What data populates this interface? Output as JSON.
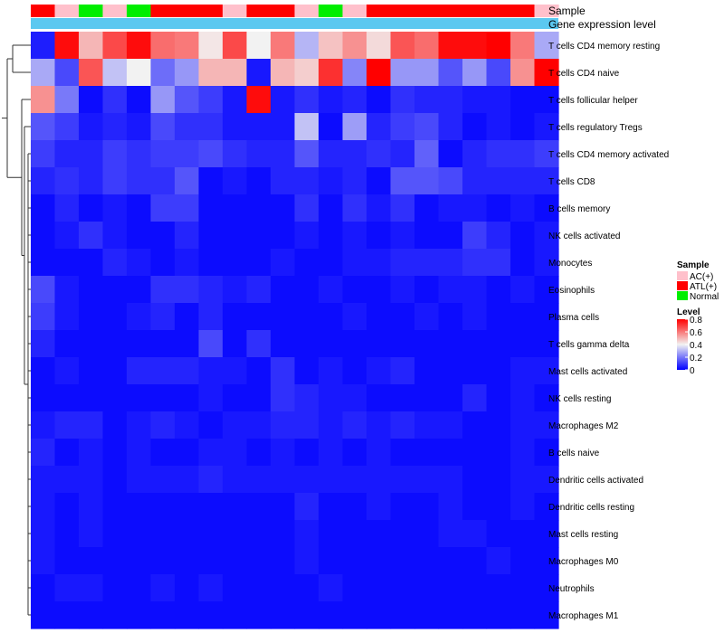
{
  "chart_data": {
    "type": "heatmap",
    "title": "",
    "row_labels": [
      "T cells CD4 memory resting",
      "T cells CD4 naive",
      "T cells follicular helper",
      "T cells regulatory  Tregs",
      "T cells CD4 memory activated",
      "T cells CD8",
      "B cells memory",
      "NK cells activated",
      "Monocytes",
      "Eosinophils",
      "Plasma cells",
      "T cells gamma delta",
      "Mast cells activated",
      "NK cells resting",
      "Macrophages M2",
      "B cells naive",
      "Dendritic cells activated",
      "Dendritic cells resting",
      "Mast cells resting",
      "Macrophages M0",
      "Neutrophils",
      "Macrophages M1"
    ],
    "annotations": [
      {
        "name": "Sample",
        "values": [
          "ATL(+)",
          "AC(+)",
          "Normal",
          "AC(+)",
          "Normal",
          "ATL(+)",
          "ATL(+)",
          "ATL(+)",
          "AC(+)",
          "ATL(+)",
          "ATL(+)",
          "AC(+)",
          "Normal",
          "AC(+)",
          "ATL(+)",
          "ATL(+)",
          "ATL(+)",
          "ATL(+)",
          "ATL(+)",
          "ATL(+)",
          "ATL(+)",
          "AC(+)"
        ]
      },
      {
        "name": "Gene expression level",
        "color": "#5bc8f0"
      }
    ],
    "sample_legend": {
      "title": "Sample",
      "entries": [
        {
          "label": "AC(+)",
          "color": "#ffc0cb"
        },
        {
          "label": "ATL(+)",
          "color": "#ff0000"
        },
        {
          "label": "Normal",
          "color": "#00ee00"
        }
      ]
    },
    "color_scale": {
      "title": "Level",
      "min": 0,
      "max": 0.8,
      "low_color": "#0000ff",
      "mid_color": "#f2f2f2",
      "high_color": "#ff0000",
      "ticks": [
        0,
        0.2,
        0.4,
        0.6,
        0.8
      ],
      "tick_labels": [
        "0",
        "0.2",
        "0.4",
        "0.6",
        "0.8"
      ]
    },
    "values": [
      [
        0.05,
        0.78,
        0.5,
        0.68,
        0.78,
        0.62,
        0.6,
        0.42,
        0.68,
        0.4,
        0.6,
        0.3,
        0.48,
        0.56,
        0.44,
        0.66,
        0.62,
        0.78,
        0.78,
        0.8,
        0.6,
        0.28
      ],
      [
        0.28,
        0.12,
        0.66,
        0.32,
        0.4,
        0.18,
        0.25,
        0.5,
        0.5,
        0.04,
        0.5,
        0.46,
        0.72,
        0.22,
        0.8,
        0.25,
        0.25,
        0.14,
        0.25,
        0.12,
        0.56,
        0.8
      ],
      [
        0.56,
        0.2,
        0.02,
        0.08,
        0.02,
        0.25,
        0.14,
        0.1,
        0.04,
        0.78,
        0.04,
        0.08,
        0.04,
        0.06,
        0.02,
        0.08,
        0.06,
        0.06,
        0.04,
        0.04,
        0.02,
        0.02
      ],
      [
        0.14,
        0.1,
        0.04,
        0.06,
        0.04,
        0.12,
        0.08,
        0.08,
        0.04,
        0.04,
        0.04,
        0.32,
        0.02,
        0.26,
        0.06,
        0.1,
        0.12,
        0.06,
        0.02,
        0.04,
        0.02,
        0.04
      ],
      [
        0.1,
        0.06,
        0.06,
        0.1,
        0.08,
        0.1,
        0.1,
        0.12,
        0.08,
        0.06,
        0.06,
        0.14,
        0.06,
        0.06,
        0.08,
        0.06,
        0.16,
        0.02,
        0.06,
        0.08,
        0.08,
        0.1
      ],
      [
        0.06,
        0.08,
        0.06,
        0.1,
        0.08,
        0.08,
        0.14,
        0.02,
        0.04,
        0.02,
        0.06,
        0.06,
        0.04,
        0.06,
        0.02,
        0.14,
        0.14,
        0.12,
        0.06,
        0.06,
        0.06,
        0.06
      ],
      [
        0.02,
        0.06,
        0.02,
        0.04,
        0.02,
        0.1,
        0.1,
        0.02,
        0.02,
        0.02,
        0.02,
        0.08,
        0.02,
        0.08,
        0.04,
        0.08,
        0.02,
        0.04,
        0.04,
        0.02,
        0.04,
        0.02
      ],
      [
        0.02,
        0.04,
        0.08,
        0.04,
        0.02,
        0.02,
        0.06,
        0.02,
        0.02,
        0.02,
        0.02,
        0.04,
        0.02,
        0.04,
        0.02,
        0.04,
        0.02,
        0.02,
        0.1,
        0.06,
        0.02,
        0.04
      ],
      [
        0.02,
        0.02,
        0.02,
        0.06,
        0.04,
        0.02,
        0.04,
        0.02,
        0.02,
        0.02,
        0.04,
        0.02,
        0.02,
        0.04,
        0.04,
        0.06,
        0.06,
        0.06,
        0.08,
        0.08,
        0.02,
        0.04
      ],
      [
        0.12,
        0.04,
        0.02,
        0.02,
        0.02,
        0.08,
        0.08,
        0.06,
        0.04,
        0.06,
        0.02,
        0.02,
        0.04,
        0.02,
        0.02,
        0.04,
        0.02,
        0.04,
        0.04,
        0.02,
        0.04,
        0.02
      ],
      [
        0.1,
        0.04,
        0.02,
        0.02,
        0.04,
        0.06,
        0.02,
        0.06,
        0.02,
        0.02,
        0.02,
        0.02,
        0.02,
        0.04,
        0.02,
        0.02,
        0.04,
        0.02,
        0.04,
        0.02,
        0.02,
        0.02
      ],
      [
        0.06,
        0.02,
        0.02,
        0.02,
        0.02,
        0.02,
        0.02,
        0.12,
        0.02,
        0.08,
        0.02,
        0.02,
        0.02,
        0.02,
        0.02,
        0.02,
        0.02,
        0.02,
        0.02,
        0.02,
        0.02,
        0.02
      ],
      [
        0.02,
        0.04,
        0.02,
        0.02,
        0.06,
        0.06,
        0.06,
        0.04,
        0.04,
        0.02,
        0.08,
        0.02,
        0.04,
        0.02,
        0.04,
        0.06,
        0.02,
        0.02,
        0.02,
        0.02,
        0.04,
        0.04
      ],
      [
        0.02,
        0.02,
        0.02,
        0.02,
        0.02,
        0.02,
        0.02,
        0.04,
        0.02,
        0.02,
        0.08,
        0.06,
        0.04,
        0.04,
        0.02,
        0.02,
        0.02,
        0.02,
        0.06,
        0.02,
        0.04,
        0.02
      ],
      [
        0.04,
        0.06,
        0.06,
        0.02,
        0.04,
        0.06,
        0.04,
        0.02,
        0.04,
        0.04,
        0.06,
        0.06,
        0.04,
        0.06,
        0.04,
        0.06,
        0.04,
        0.04,
        0.02,
        0.02,
        0.04,
        0.04
      ],
      [
        0.06,
        0.02,
        0.04,
        0.02,
        0.04,
        0.02,
        0.02,
        0.04,
        0.04,
        0.02,
        0.04,
        0.02,
        0.04,
        0.02,
        0.04,
        0.02,
        0.02,
        0.02,
        0.02,
        0.02,
        0.04,
        0.02
      ],
      [
        0.04,
        0.04,
        0.04,
        0.02,
        0.04,
        0.04,
        0.04,
        0.06,
        0.04,
        0.04,
        0.04,
        0.04,
        0.04,
        0.04,
        0.04,
        0.04,
        0.04,
        0.04,
        0.02,
        0.02,
        0.04,
        0.04
      ],
      [
        0.04,
        0.02,
        0.04,
        0.02,
        0.02,
        0.02,
        0.02,
        0.02,
        0.02,
        0.02,
        0.02,
        0.06,
        0.02,
        0.02,
        0.04,
        0.02,
        0.02,
        0.04,
        0.02,
        0.02,
        0.04,
        0.02
      ],
      [
        0.04,
        0.02,
        0.04,
        0.02,
        0.02,
        0.02,
        0.02,
        0.02,
        0.02,
        0.02,
        0.02,
        0.04,
        0.02,
        0.02,
        0.02,
        0.02,
        0.02,
        0.04,
        0.04,
        0.02,
        0.02,
        0.02
      ],
      [
        0.04,
        0.02,
        0.02,
        0.02,
        0.02,
        0.02,
        0.02,
        0.02,
        0.02,
        0.02,
        0.02,
        0.04,
        0.02,
        0.02,
        0.02,
        0.02,
        0.02,
        0.02,
        0.02,
        0.04,
        0.02,
        0.02
      ],
      [
        0.02,
        0.04,
        0.04,
        0.02,
        0.02,
        0.04,
        0.02,
        0.04,
        0.02,
        0.02,
        0.02,
        0.02,
        0.04,
        0.02,
        0.02,
        0.02,
        0.02,
        0.02,
        0.02,
        0.02,
        0.02,
        0.02
      ],
      [
        0.02,
        0.02,
        0.02,
        0.02,
        0.02,
        0.02,
        0.02,
        0.02,
        0.02,
        0.02,
        0.02,
        0.02,
        0.02,
        0.02,
        0.02,
        0.02,
        0.02,
        0.02,
        0.02,
        0.02,
        0.02,
        0.02
      ]
    ]
  }
}
